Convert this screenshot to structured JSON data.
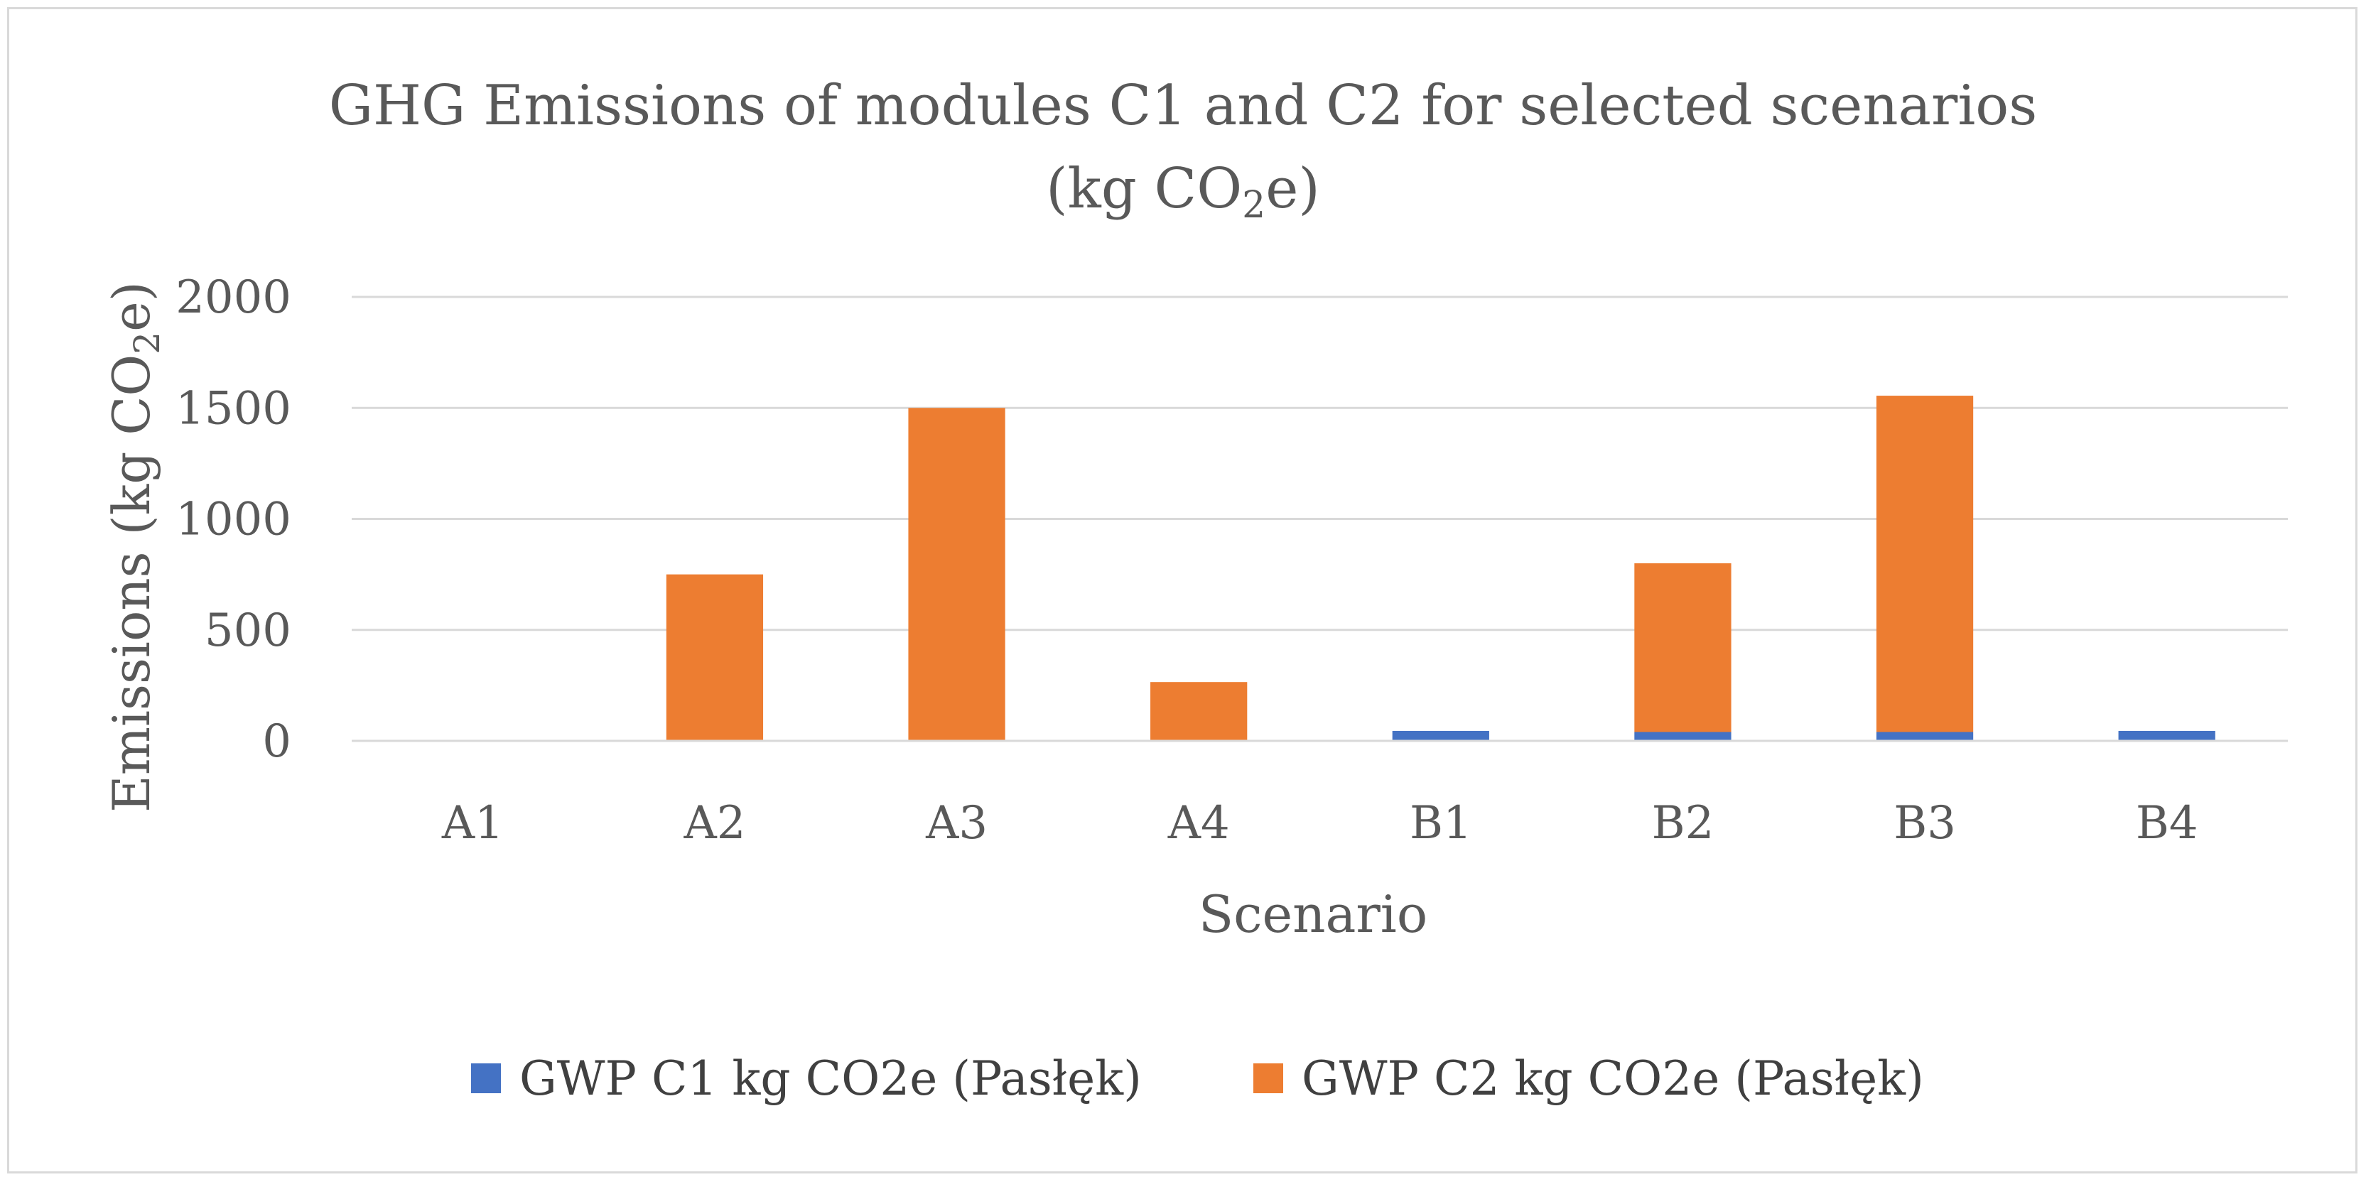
{
  "chart_data": {
    "type": "bar",
    "stacked": true,
    "title": "GHG Emissions of modules C1 and C2 for selected scenarios",
    "title_line2": {
      "prefix": "(kg CO",
      "sub": "2",
      "suffix": "e)"
    },
    "xlabel": "Scenario",
    "ylabel": {
      "prefix": "Emissions (kg CO",
      "sub": "2",
      "suffix": "e)"
    },
    "categories": [
      "A1",
      "A2",
      "A3",
      "A4",
      "B1",
      "B2",
      "B3",
      "B4"
    ],
    "ylim": [
      0,
      2000
    ],
    "yticks": [
      0,
      500,
      1000,
      1500,
      2000
    ],
    "grid": true,
    "legend_position": "bottom",
    "series": [
      {
        "name": "GWP C1 kg CO2e (Pasłęk)",
        "color": "#4472c4",
        "values": [
          0,
          0,
          0,
          0,
          45,
          40,
          40,
          45
        ]
      },
      {
        "name": "GWP C2 kg CO2e (Pasłęk)",
        "color": "#ed7d31",
        "values": [
          0,
          750,
          1500,
          265,
          0,
          760,
          1515,
          0
        ]
      }
    ]
  }
}
